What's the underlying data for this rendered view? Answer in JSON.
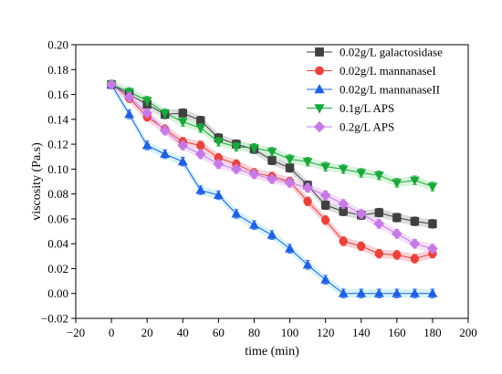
{
  "chart_data": {
    "type": "line",
    "xlabel": "time (min)",
    "ylabel": "viscosity (Pa.s)",
    "xlim": [
      -20,
      200
    ],
    "ylim": [
      -0.02,
      0.2
    ],
    "xticks": [
      -20,
      0,
      20,
      40,
      60,
      80,
      100,
      120,
      140,
      160,
      180,
      200
    ],
    "yticks": [
      -0.02,
      0.0,
      0.02,
      0.04,
      0.06,
      0.08,
      0.1,
      0.12,
      0.14,
      0.16,
      0.18,
      0.2
    ],
    "xtick_labels": [
      "−20",
      "0",
      "20",
      "40",
      "60",
      "80",
      "100",
      "120",
      "140",
      "160",
      "180",
      "200"
    ],
    "ytick_labels": [
      "−0.02",
      "0.00",
      "0.02",
      "0.04",
      "0.06",
      "0.08",
      "0.10",
      "0.12",
      "0.14",
      "0.16",
      "0.18",
      "0.20"
    ],
    "grid": false,
    "legend_position": "top-right",
    "x": [
      0,
      10,
      20,
      30,
      40,
      50,
      60,
      70,
      80,
      90,
      100,
      110,
      120,
      130,
      140,
      150,
      160,
      170,
      180
    ],
    "series": [
      {
        "name": "0.02g/L galactosidase",
        "marker": "square",
        "color": "#404040",
        "band": "#cfcfcf",
        "values": [
          0.168,
          0.16,
          0.152,
          0.144,
          0.145,
          0.139,
          0.125,
          0.12,
          0.116,
          0.107,
          0.101,
          0.087,
          0.071,
          0.066,
          0.063,
          0.065,
          0.061,
          0.058,
          0.056
        ]
      },
      {
        "name": "0.02g/L mannanaseI",
        "marker": "circle",
        "color": "#e8423c",
        "band": "#f7c3c7",
        "values": [
          0.168,
          0.157,
          0.142,
          0.132,
          0.122,
          0.119,
          0.109,
          0.104,
          0.097,
          0.094,
          0.09,
          0.074,
          0.059,
          0.042,
          0.038,
          0.032,
          0.031,
          0.028,
          0.032
        ]
      },
      {
        "name": "0.02g/L mannanaseII",
        "marker": "triangle-up",
        "color": "#2060e0",
        "band": "#c7ecf7",
        "values": [
          0.168,
          0.144,
          0.119,
          0.112,
          0.106,
          0.083,
          0.079,
          0.064,
          0.055,
          0.047,
          0.036,
          0.023,
          0.011,
          0.0,
          0.0,
          0.0,
          0.0,
          0.0,
          0.0
        ]
      },
      {
        "name": "0.1g/L APS",
        "marker": "triangle-down",
        "color": "#1aa83c",
        "band": "#c9f0cf",
        "values": [
          0.168,
          0.162,
          0.155,
          0.145,
          0.138,
          0.133,
          0.122,
          0.118,
          0.117,
          0.114,
          0.108,
          0.106,
          0.102,
          0.1,
          0.097,
          0.095,
          0.089,
          0.091,
          0.086
        ]
      },
      {
        "name": "0.2g/L APS",
        "marker": "diamond",
        "color": "#c77ae6",
        "band": "#f0d6f8",
        "values": [
          0.168,
          0.158,
          0.145,
          0.131,
          0.119,
          0.112,
          0.104,
          0.1,
          0.096,
          0.092,
          0.089,
          0.085,
          0.079,
          0.072,
          0.064,
          0.056,
          0.048,
          0.04,
          0.036
        ]
      }
    ]
  }
}
